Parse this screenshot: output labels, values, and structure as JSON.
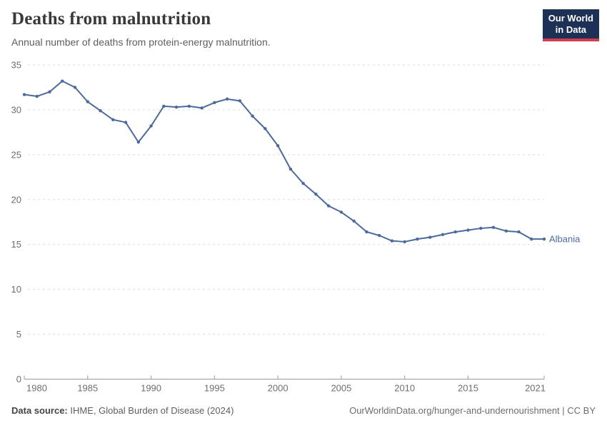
{
  "header": {
    "title": "Deaths from malnutrition",
    "subtitle": "Annual number of deaths from protein-energy malnutrition."
  },
  "logo": {
    "line1": "Our World",
    "line2": "in Data",
    "bg_color": "#1d3156",
    "accent_color": "#d23d4f"
  },
  "chart_data": {
    "type": "line",
    "title": "Deaths from malnutrition",
    "subtitle": "Annual number of deaths from protein-energy malnutrition.",
    "x": [
      1980,
      1981,
      1982,
      1983,
      1984,
      1985,
      1986,
      1987,
      1988,
      1989,
      1990,
      1991,
      1992,
      1993,
      1994,
      1995,
      1996,
      1997,
      1998,
      1999,
      2000,
      2001,
      2002,
      2003,
      2004,
      2005,
      2006,
      2007,
      2008,
      2009,
      2010,
      2011,
      2012,
      2013,
      2014,
      2015,
      2016,
      2017,
      2018,
      2019,
      2020,
      2021
    ],
    "series": [
      {
        "name": "Albania",
        "color": "#4c6a9c",
        "values": [
          31.7,
          31.5,
          32.0,
          33.2,
          32.5,
          30.9,
          29.9,
          28.9,
          28.6,
          26.4,
          28.2,
          30.4,
          30.3,
          30.4,
          30.2,
          30.8,
          31.2,
          31.0,
          29.3,
          27.9,
          26.0,
          23.4,
          21.8,
          20.6,
          19.3,
          18.6,
          17.6,
          16.4,
          16.0,
          15.4,
          15.3,
          15.6,
          15.8,
          16.1,
          16.4,
          16.6,
          16.8,
          16.9,
          16.5,
          16.4,
          15.6,
          15.6
        ]
      }
    ],
    "xlabel": "",
    "ylabel": "",
    "xlim": [
      1980,
      2021
    ],
    "ylim": [
      0,
      35
    ],
    "yticks": [
      0,
      5,
      10,
      15,
      20,
      25,
      30,
      35
    ],
    "xticks": [
      1980,
      1985,
      1990,
      1995,
      2000,
      2005,
      2010,
      2015,
      2021
    ],
    "grid": "horizontal-dashed",
    "legend": "line-end-label"
  },
  "footer": {
    "source_label": "Data source:",
    "source_value": " IHME, Global Burden of Disease (2024)",
    "link": "OurWorldinData.org/hunger-and-undernourishment | CC BY"
  }
}
